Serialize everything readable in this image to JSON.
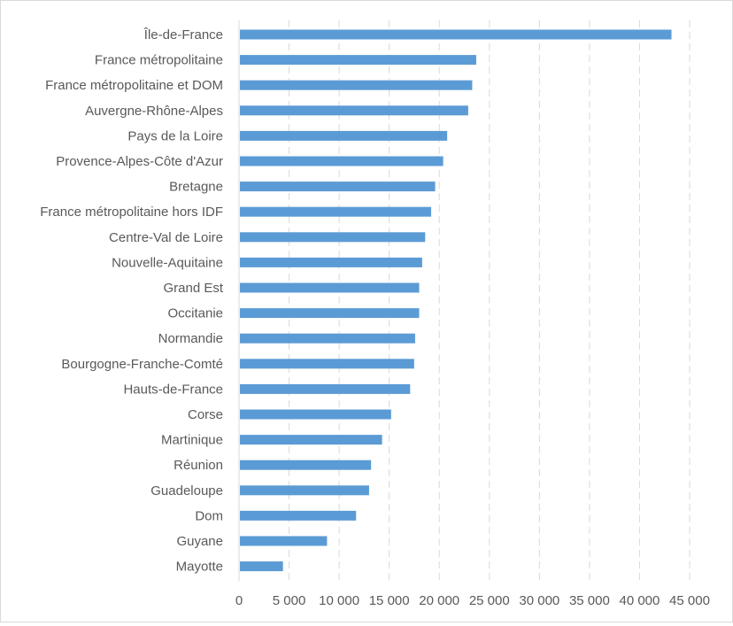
{
  "chart_data": {
    "type": "bar",
    "orientation": "horizontal",
    "categories": [
      "Île-de-France",
      "France métropolitaine",
      "France métropolitaine et DOM",
      "Auvergne-Rhône-Alpes",
      "Pays de la Loire",
      "Provence-Alpes-Côte d'Azur",
      "Bretagne",
      "France métropolitaine hors IDF",
      "Centre-Val de Loire",
      "Nouvelle-Aquitaine",
      "Grand Est",
      "Occitanie",
      "Normandie",
      "Bourgogne-Franche-Comté",
      "Hauts-de-France",
      "Corse",
      "Martinique",
      "Réunion",
      "Guadeloupe",
      "Dom",
      "Guyane",
      "Mayotte"
    ],
    "values": [
      43100,
      23600,
      23200,
      22800,
      20700,
      20300,
      19500,
      19100,
      18500,
      18200,
      17900,
      17900,
      17500,
      17400,
      17000,
      15100,
      14200,
      13100,
      12900,
      11600,
      8700,
      4300
    ],
    "xlim": [
      0,
      45000
    ],
    "xticks": [
      "0",
      "5 000",
      "10 000",
      "15 000",
      "20 000",
      "25 000",
      "30 000",
      "35 000",
      "40 000",
      "45 000"
    ],
    "grid": "vertical-dashed",
    "legend": "none",
    "bar_color": "#5b9bd5",
    "grid_color": "#d9d9d9",
    "text_color": "#595959"
  }
}
